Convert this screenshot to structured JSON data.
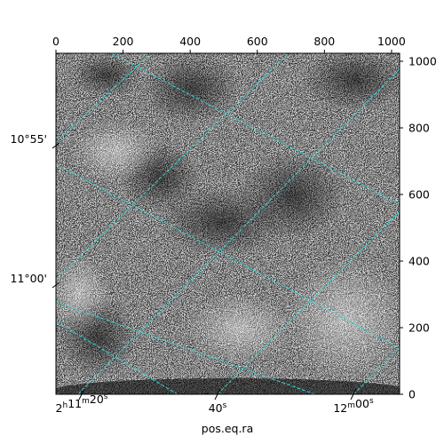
{
  "chart_data": {
    "type": "heatmap",
    "xlabel": "pos.eq.ra",
    "pixel_axes": {
      "x_range": [
        0,
        1024
      ],
      "y_range": [
        0,
        1024
      ],
      "x_ticks": [
        0,
        200,
        400,
        600,
        800,
        1000
      ],
      "y_ticks": [
        0,
        200,
        400,
        600,
        800,
        1000
      ]
    },
    "ra_ticks": [
      {
        "h": "2",
        "m": "11",
        "s": "20",
        "show_hm": true
      },
      {
        "h": "",
        "m": "",
        "s": "40",
        "show_hm": false
      },
      {
        "h": "",
        "m": "12",
        "s": "00",
        "show_hm": false
      }
    ],
    "dec_ticks": [
      "10°55'",
      "11°00'"
    ],
    "colors": {
      "grid": "#33d6d6",
      "background_noise": "grayscale",
      "frame": "#000000"
    },
    "image": "greyscale noisy sky image, darker blotches upper/middle, brighter lower-right"
  }
}
